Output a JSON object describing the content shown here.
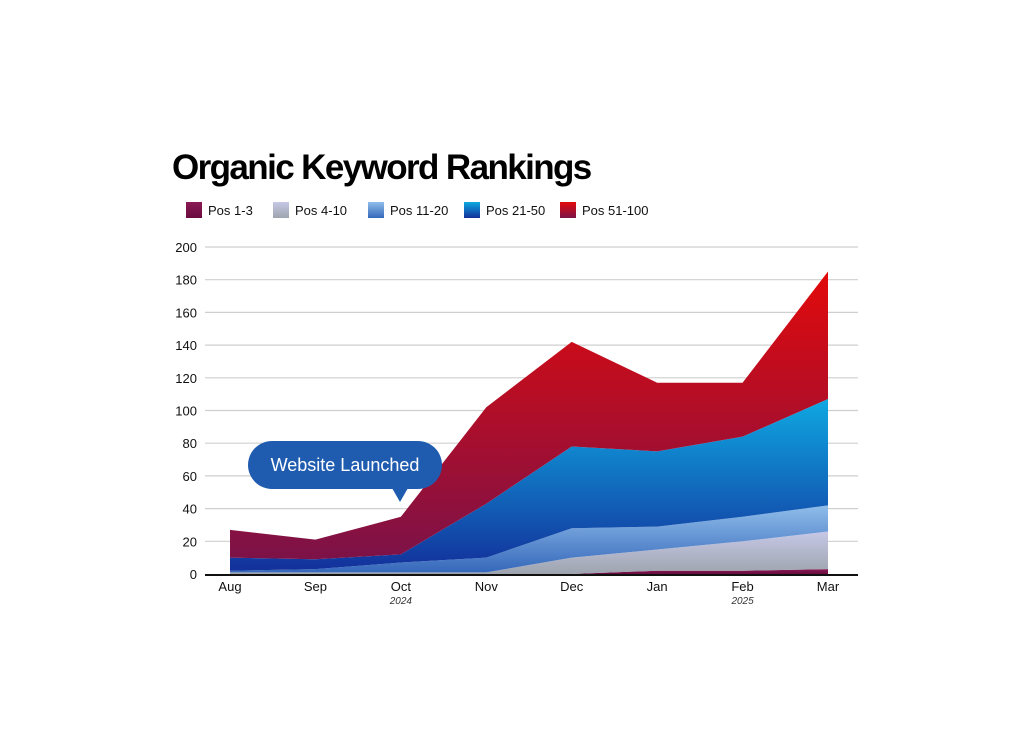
{
  "chart_data": {
    "type": "area",
    "stacked": true,
    "title": "Organic Keyword Rankings",
    "categories": [
      "Aug",
      "Sep",
      "Oct",
      "Nov",
      "Dec",
      "Jan",
      "Feb",
      "Mar"
    ],
    "year_labels": [
      {
        "category": "Oct",
        "text": "2024"
      },
      {
        "category": "Feb",
        "text": "2025"
      }
    ],
    "series": [
      {
        "name": "Pos 1-3",
        "values": [
          0,
          0,
          0,
          0,
          0,
          2,
          2,
          3
        ],
        "colors": [
          "#8a1a55",
          "#6a0c40"
        ]
      },
      {
        "name": "Pos 4-10",
        "values": [
          1,
          1,
          1,
          1,
          10,
          13,
          18,
          23
        ],
        "colors": [
          "#c6c8e6",
          "#9ea4ae"
        ]
      },
      {
        "name": "Pos 11-20",
        "values": [
          1,
          2,
          6,
          9,
          18,
          14,
          15,
          16
        ],
        "colors": [
          "#8fbdea",
          "#3668bb"
        ]
      },
      {
        "name": "Pos 21-50",
        "values": [
          8,
          6,
          5,
          33,
          50,
          46,
          49,
          65
        ],
        "colors": [
          "#0fa8e2",
          "#13309a"
        ]
      },
      {
        "name": "Pos 51-100",
        "values": [
          17,
          12,
          23,
          59,
          64,
          42,
          33,
          78
        ],
        "colors": [
          "#e20a0a",
          "#7c1248"
        ]
      }
    ],
    "ylim": [
      0,
      200
    ],
    "yticks": [
      0,
      20,
      40,
      60,
      80,
      100,
      120,
      140,
      160,
      180,
      200
    ],
    "grid": true,
    "legend_placement": "top-left",
    "annotation": {
      "text": "Website Launched",
      "category": "Oct",
      "color": "#1f5cb0"
    }
  }
}
